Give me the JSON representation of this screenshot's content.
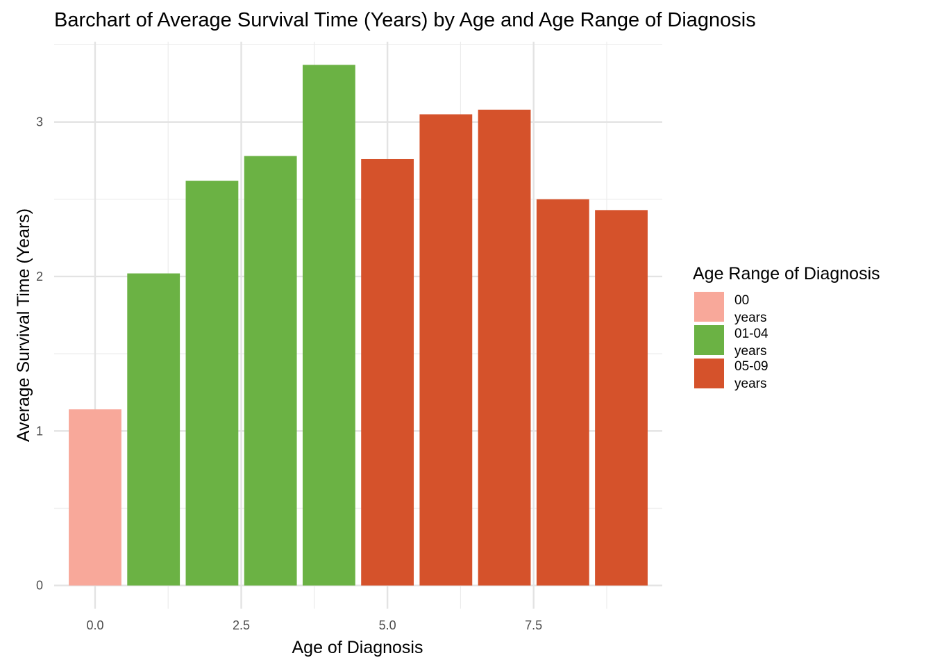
{
  "chart_data": {
    "type": "bar",
    "title": "Barchart of Average Survival Time (Years) by Age and Age Range of Diagnosis",
    "xlabel": "Age of Diagnosis",
    "ylabel": "Average Survival Time (Years)",
    "x": [
      0,
      1,
      2,
      3,
      4,
      5,
      6,
      7,
      8,
      9
    ],
    "values": [
      1.14,
      2.02,
      2.62,
      2.78,
      3.37,
      2.76,
      3.05,
      3.08,
      2.5,
      2.43
    ],
    "groups": [
      "00 years",
      "01-04 years",
      "01-04 years",
      "01-04 years",
      "01-04 years",
      "05-09 years",
      "05-09 years",
      "05-09 years",
      "05-09 years",
      "05-09 years"
    ],
    "xlim": [
      -0.7,
      9.7
    ],
    "ylim": [
      -0.15,
      3.52
    ],
    "x_ticks": [
      0,
      2.5,
      5,
      7.5
    ],
    "x_tick_labels": [
      "0.0",
      "2.5",
      "5.0",
      "7.5"
    ],
    "y_ticks": [
      0,
      1,
      2,
      3
    ],
    "y_tick_labels": [
      "0",
      "1",
      "2",
      "3"
    ],
    "grid": true,
    "legend": {
      "title": "Age Range of Diagnosis",
      "placement": "right",
      "entries": [
        {
          "line1": "00",
          "line2": "years",
          "color": "#F8A89A"
        },
        {
          "line1": "01-04",
          "line2": "years",
          "color": "#6BB244"
        },
        {
          "line1": "05-09",
          "line2": "years",
          "color": "#D5522B"
        }
      ]
    }
  }
}
